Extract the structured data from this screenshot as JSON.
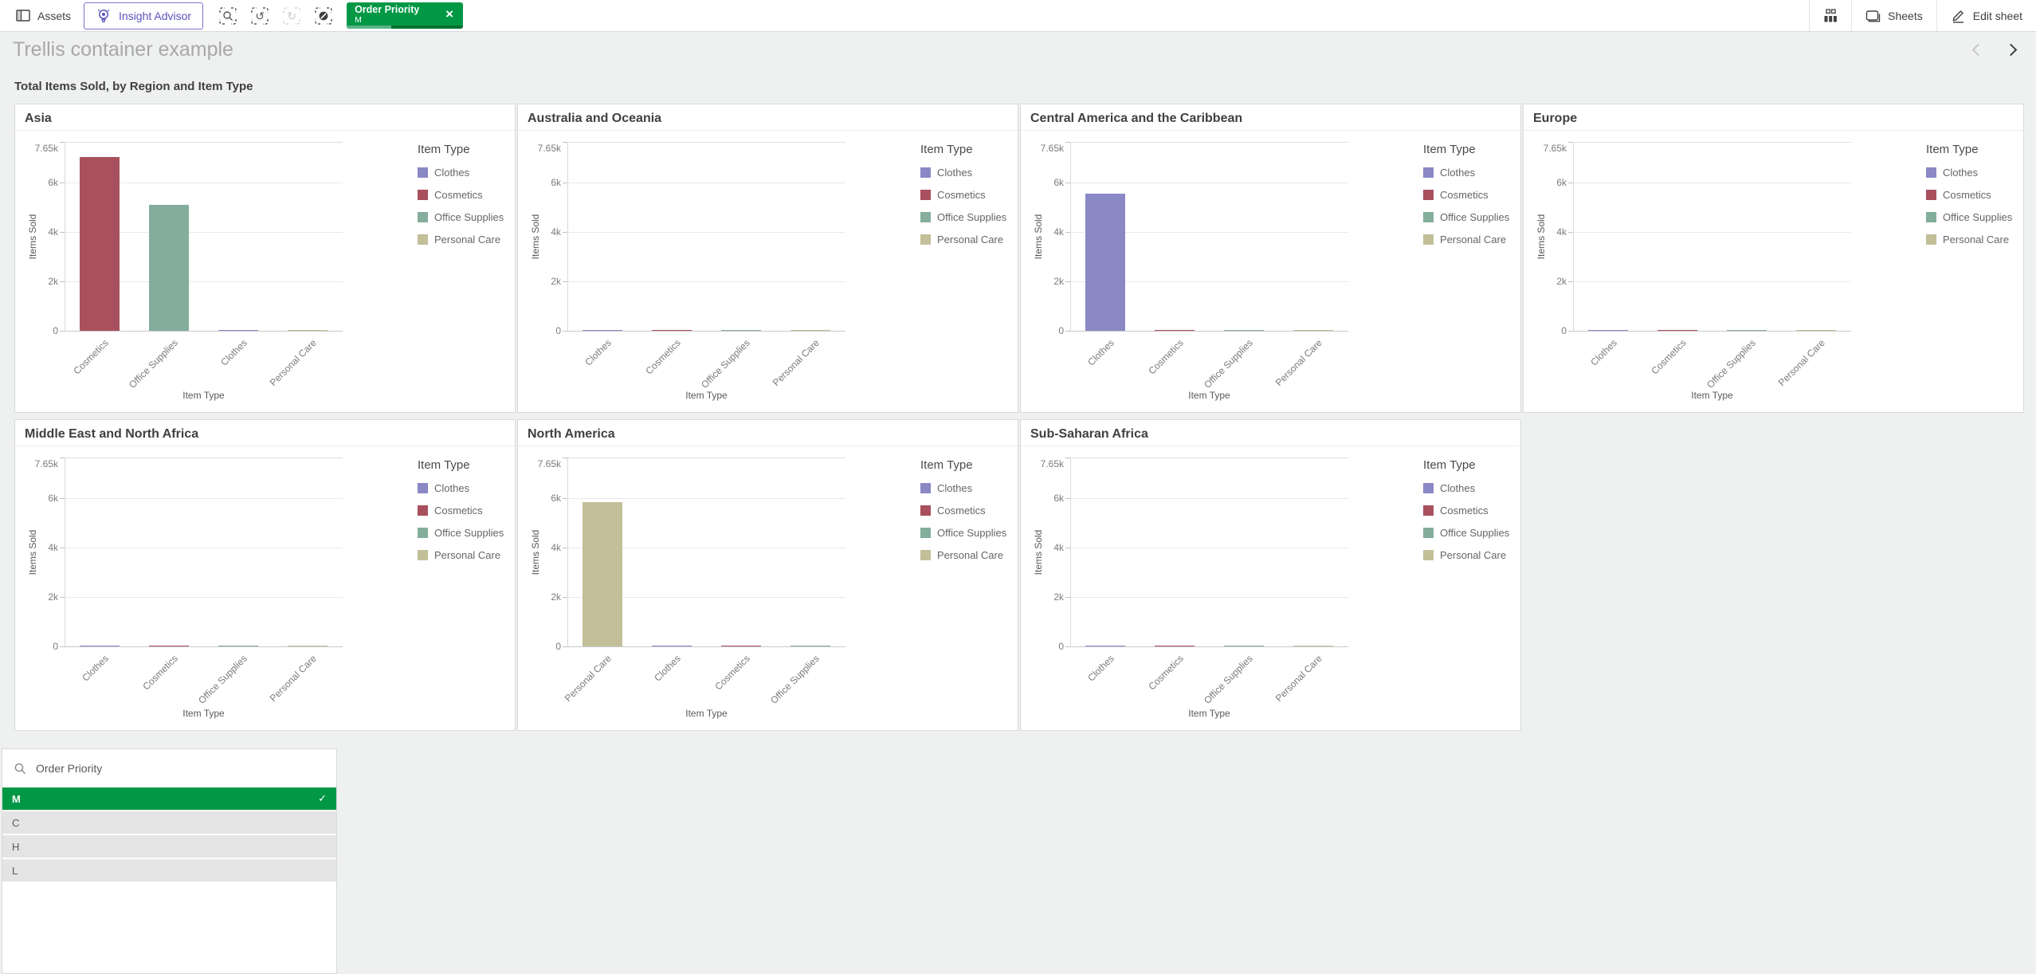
{
  "toolbar": {
    "assets_label": "Assets",
    "insight_advisor_label": "Insight Advisor",
    "selection_chip": {
      "field": "Order Priority",
      "value": "M"
    },
    "sheets_label": "Sheets",
    "edit_sheet_label": "Edit sheet"
  },
  "sheet": {
    "title": "Trellis container example"
  },
  "icons": {
    "chip_close_glyph": "×",
    "undo_glyph": "↺",
    "redo_glyph": "↻",
    "check_glyph": "✓"
  },
  "filterpane": {
    "title": "Order Priority",
    "items": [
      {
        "label": "M",
        "state": "selected"
      },
      {
        "label": "C",
        "state": "alternative"
      },
      {
        "label": "H",
        "state": "alternative"
      },
      {
        "label": "L",
        "state": "alternative"
      }
    ]
  },
  "colors": {
    "selected_green": "#009845",
    "accent_purple": "#5a53bd",
    "clothes": "#8a88c5",
    "cosmetics": "#a8505e",
    "office_supplies": "#84ad9b",
    "personal_care": "#c2bf99"
  },
  "chart_data": {
    "type": "bar",
    "title": "Total Items Sold, by Region and Item Type",
    "xlabel": "Item Type",
    "ylabel": "Items Sold",
    "ylim": [
      0,
      7650
    ],
    "yticks": [
      {
        "value": 0,
        "label": "0"
      },
      {
        "value": 2000,
        "label": "2k"
      },
      {
        "value": 4000,
        "label": "4k"
      },
      {
        "value": 6000,
        "label": "6k"
      },
      {
        "value": 7650,
        "label": "7.65k"
      }
    ],
    "legend_title": "Item Type",
    "legend": [
      "Clothes",
      "Cosmetics",
      "Office Supplies",
      "Personal Care"
    ],
    "grid": true,
    "legend_position": "right",
    "panels": [
      {
        "region": "Asia",
        "categories": [
          "Cosmetics",
          "Office Supplies",
          "Clothes",
          "Personal Care"
        ],
        "values": [
          7050,
          5100,
          40,
          30
        ]
      },
      {
        "region": "Australia and Oceania",
        "categories": [
          "Clothes",
          "Cosmetics",
          "Office Supplies",
          "Personal Care"
        ],
        "values": [
          15,
          30,
          20,
          10
        ]
      },
      {
        "region": "Central America and the Caribbean",
        "categories": [
          "Clothes",
          "Cosmetics",
          "Office Supplies",
          "Personal Care"
        ],
        "values": [
          5550,
          30,
          15,
          10
        ]
      },
      {
        "region": "Europe",
        "categories": [
          "Clothes",
          "Cosmetics",
          "Office Supplies",
          "Personal Care"
        ],
        "values": [
          10,
          25,
          15,
          8
        ]
      },
      {
        "region": "Middle East and North Africa",
        "categories": [
          "Clothes",
          "Cosmetics",
          "Office Supplies",
          "Personal Care"
        ],
        "values": [
          10,
          20,
          12,
          8
        ]
      },
      {
        "region": "North America",
        "categories": [
          "Personal Care",
          "Clothes",
          "Cosmetics",
          "Office Supplies"
        ],
        "values": [
          5850,
          20,
          30,
          15
        ]
      },
      {
        "region": "Sub-Saharan Africa",
        "categories": [
          "Clothes",
          "Cosmetics",
          "Office Supplies",
          "Personal Care"
        ],
        "values": [
          10,
          20,
          12,
          8
        ]
      }
    ]
  }
}
